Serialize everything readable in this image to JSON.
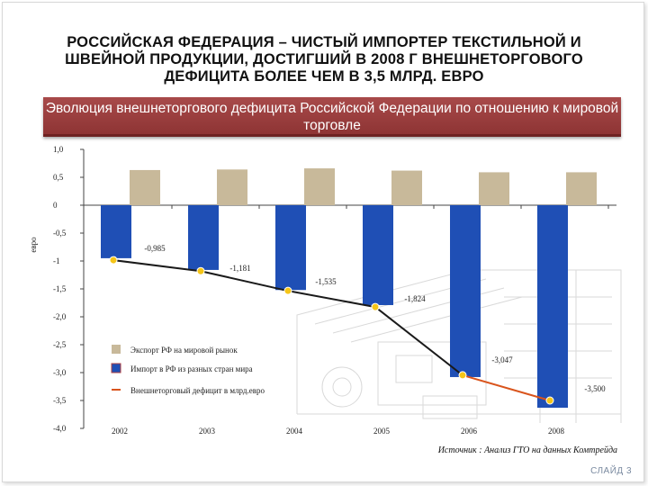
{
  "title": "РОССИЙСКАЯ ФЕДЕРАЦИЯ – ЧИСТЫЙ ИМПОРТЕР ТЕКСТИЛЬНОЙ И ШВЕЙНОЙ ПРОДУКЦИИ, ДОСТИГШИЙ В 2008 Г ВНЕШНЕТОРГОВОГО ДЕФИЦИТА БОЛЕЕ ЧЕМ В 3,5 МЛРД. ЕВРО",
  "subtitle": "Эволюция внешнеторгового дефицита Российской Федерации по отношению к мировой торговле",
  "source": "Источник : Анализ ГТО на данных Комтрейда",
  "slide_label": "СЛАЙД 3",
  "colors": {
    "banner": "#9a3c3c",
    "export_bar": "#c8b99a",
    "import_bar": "#1f4fb5",
    "deficit_line": "#1a1a1a",
    "deficit_line_2008": "#d9541c",
    "marker": "#f5c518"
  },
  "chart_data": {
    "type": "bar",
    "categories": [
      "2002",
      "2003",
      "2004",
      "2005",
      "2006",
      "2008"
    ],
    "ylabel": "евро",
    "ylim": [
      -4.0,
      1.0
    ],
    "y_ticks": [
      1.0,
      0.5,
      0,
      -0.5,
      -1,
      -1.5,
      -2.0,
      -2.5,
      -3.0,
      -3.5,
      -4.0
    ],
    "y_tick_labels": [
      "1,0",
      "0,5",
      "0",
      "-0,5",
      "-1",
      "-1,5",
      "-2,0",
      "-2,5",
      "-3,0",
      "-3,5",
      "-4,0"
    ],
    "series": [
      {
        "name": "Экспорт РФ на мировой рынок",
        "kind": "bar",
        "values": [
          0.63,
          0.64,
          0.66,
          0.62,
          0.59,
          0.59
        ]
      },
      {
        "name": "Импорт в РФ из разных стран мира",
        "kind": "bar",
        "values": [
          -0.95,
          -1.16,
          -1.52,
          -1.79,
          -3.08,
          -3.63
        ]
      },
      {
        "name": "Внешнеторговый дефицит в млрд.евро",
        "kind": "line",
        "values": [
          -0.985,
          -1.181,
          -1.535,
          -1.824,
          -3.047,
          -3.5
        ],
        "labels": [
          "-0,985",
          "-1,181",
          "-1,535",
          "-1,824",
          "-3,047",
          "-3,500"
        ]
      }
    ],
    "legend_position": "center-left",
    "grid": false
  }
}
